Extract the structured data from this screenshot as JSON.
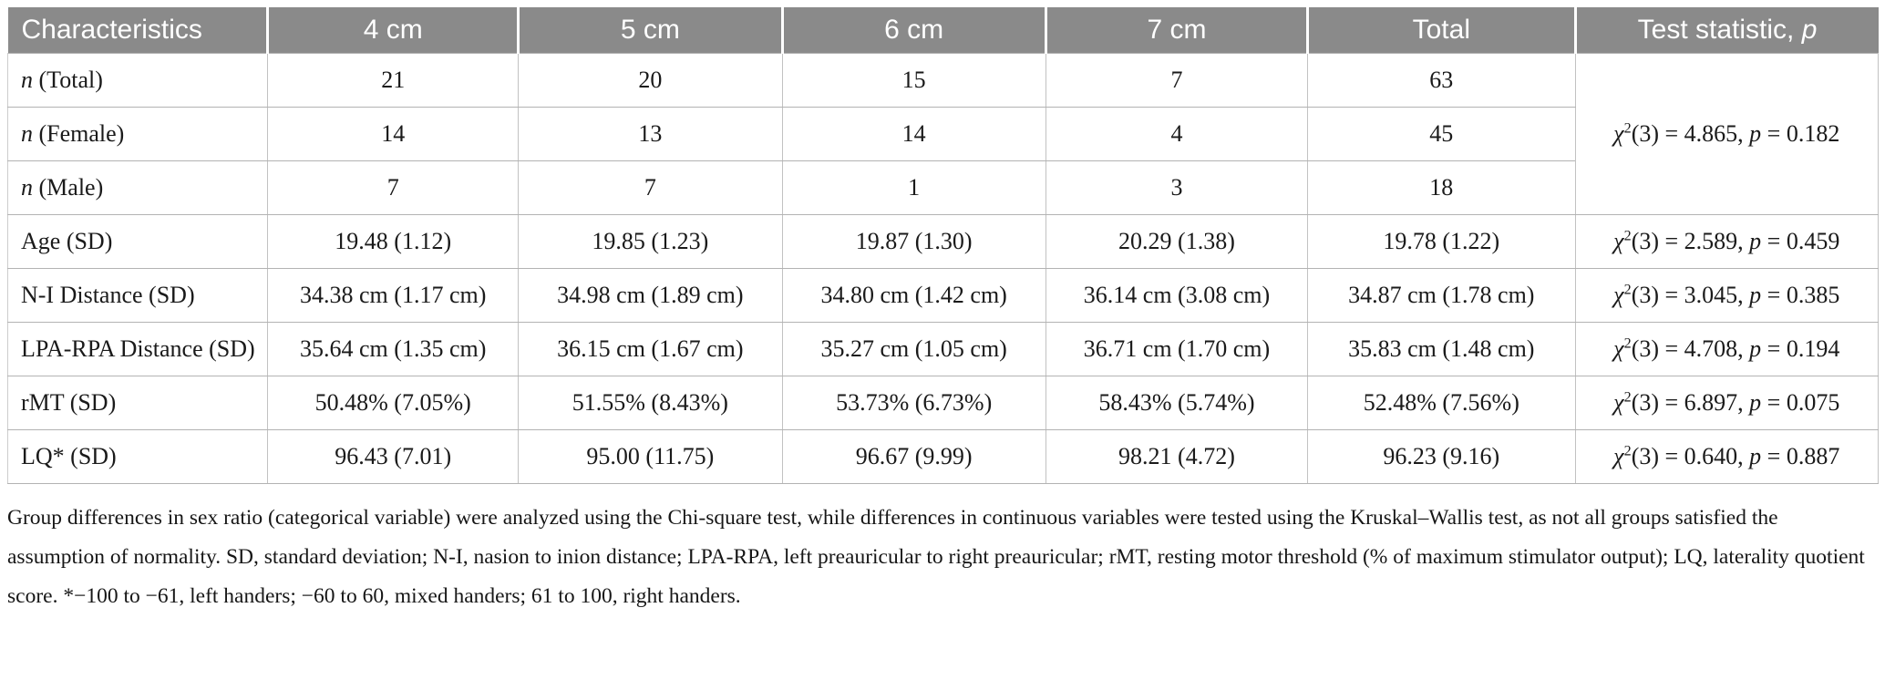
{
  "table": {
    "columns": [
      {
        "label": "Characteristics"
      },
      {
        "label": "4 cm"
      },
      {
        "label": "5 cm"
      },
      {
        "label": "6 cm"
      },
      {
        "label": "7 cm"
      },
      {
        "label": "Total"
      },
      {
        "label": "Test statistic, ",
        "italic": "p"
      }
    ],
    "test_format": {
      "chi": "χ",
      "sup": "2",
      "df_open": "(",
      "df_close": ") = ",
      "sep": ", ",
      "p_symbol": "p",
      "p_eq": " = "
    },
    "rows": [
      {
        "label_italic": "n",
        "label": " (Total)",
        "values": [
          "21",
          "20",
          "15",
          "7",
          "63"
        ],
        "test": {
          "df": "3",
          "value": "4.865",
          "p": "0.182",
          "rowspan": 3
        }
      },
      {
        "label_italic": "n",
        "label": " (Female)",
        "values": [
          "14",
          "13",
          "14",
          "4",
          "45"
        ],
        "test": null
      },
      {
        "label_italic": "n",
        "label": " (Male)",
        "values": [
          "7",
          "7",
          "1",
          "3",
          "18"
        ],
        "test": null
      },
      {
        "label": "Age (SD)",
        "values": [
          "19.48 (1.12)",
          "19.85 (1.23)",
          "19.87 (1.30)",
          "20.29 (1.38)",
          "19.78 (1.22)"
        ],
        "test": {
          "df": "3",
          "value": "2.589",
          "p": "0.459",
          "rowspan": 1
        }
      },
      {
        "label": "N-I Distance (SD)",
        "values": [
          "34.38 cm (1.17 cm)",
          "34.98 cm (1.89 cm)",
          "34.80 cm (1.42 cm)",
          "36.14 cm (3.08 cm)",
          "34.87 cm (1.78 cm)"
        ],
        "test": {
          "df": "3",
          "value": "3.045",
          "p": "0.385",
          "rowspan": 1
        }
      },
      {
        "label": "LPA-RPA Distance (SD)",
        "values": [
          "35.64 cm (1.35 cm)",
          "36.15 cm (1.67 cm)",
          "35.27 cm (1.05 cm)",
          "36.71 cm (1.70 cm)",
          "35.83 cm (1.48 cm)"
        ],
        "test": {
          "df": "3",
          "value": "4.708",
          "p": "0.194",
          "rowspan": 1
        }
      },
      {
        "label": "rMT (SD)",
        "values": [
          "50.48% (7.05%)",
          "51.55% (8.43%)",
          "53.73% (6.73%)",
          "58.43% (5.74%)",
          "52.48% (7.56%)"
        ],
        "test": {
          "df": "3",
          "value": "6.897",
          "p": "0.075",
          "rowspan": 1
        }
      },
      {
        "label": "LQ* (SD)",
        "values": [
          "96.43 (7.01)",
          "95.00 (11.75)",
          "96.67 (9.99)",
          "98.21 (4.72)",
          "96.23 (9.16)"
        ],
        "test": {
          "df": "3",
          "value": "0.640",
          "p": "0.887",
          "rowspan": 1
        }
      }
    ]
  },
  "footnote": "Group differences in sex ratio (categorical variable) were analyzed using the Chi-square test, while differences in continuous variables were tested using the Kruskal–Wallis test, as not all groups satisfied the assumption of normality. SD, standard deviation; N-I, nasion to inion distance; LPA-RPA, left preauricular to right preauricular; rMT, resting motor threshold (% of maximum stimulator output); LQ, laterality quotient score. *−100 to −61, left handers; −60 to 60, mixed handers; 61 to 100, right handers.",
  "colors": {
    "header_bg": "#8a8a8a",
    "header_text": "#ffffff",
    "border": "#c2c2c2",
    "row_border": "#b3b3b3",
    "body_text": "#1a1a1a"
  }
}
